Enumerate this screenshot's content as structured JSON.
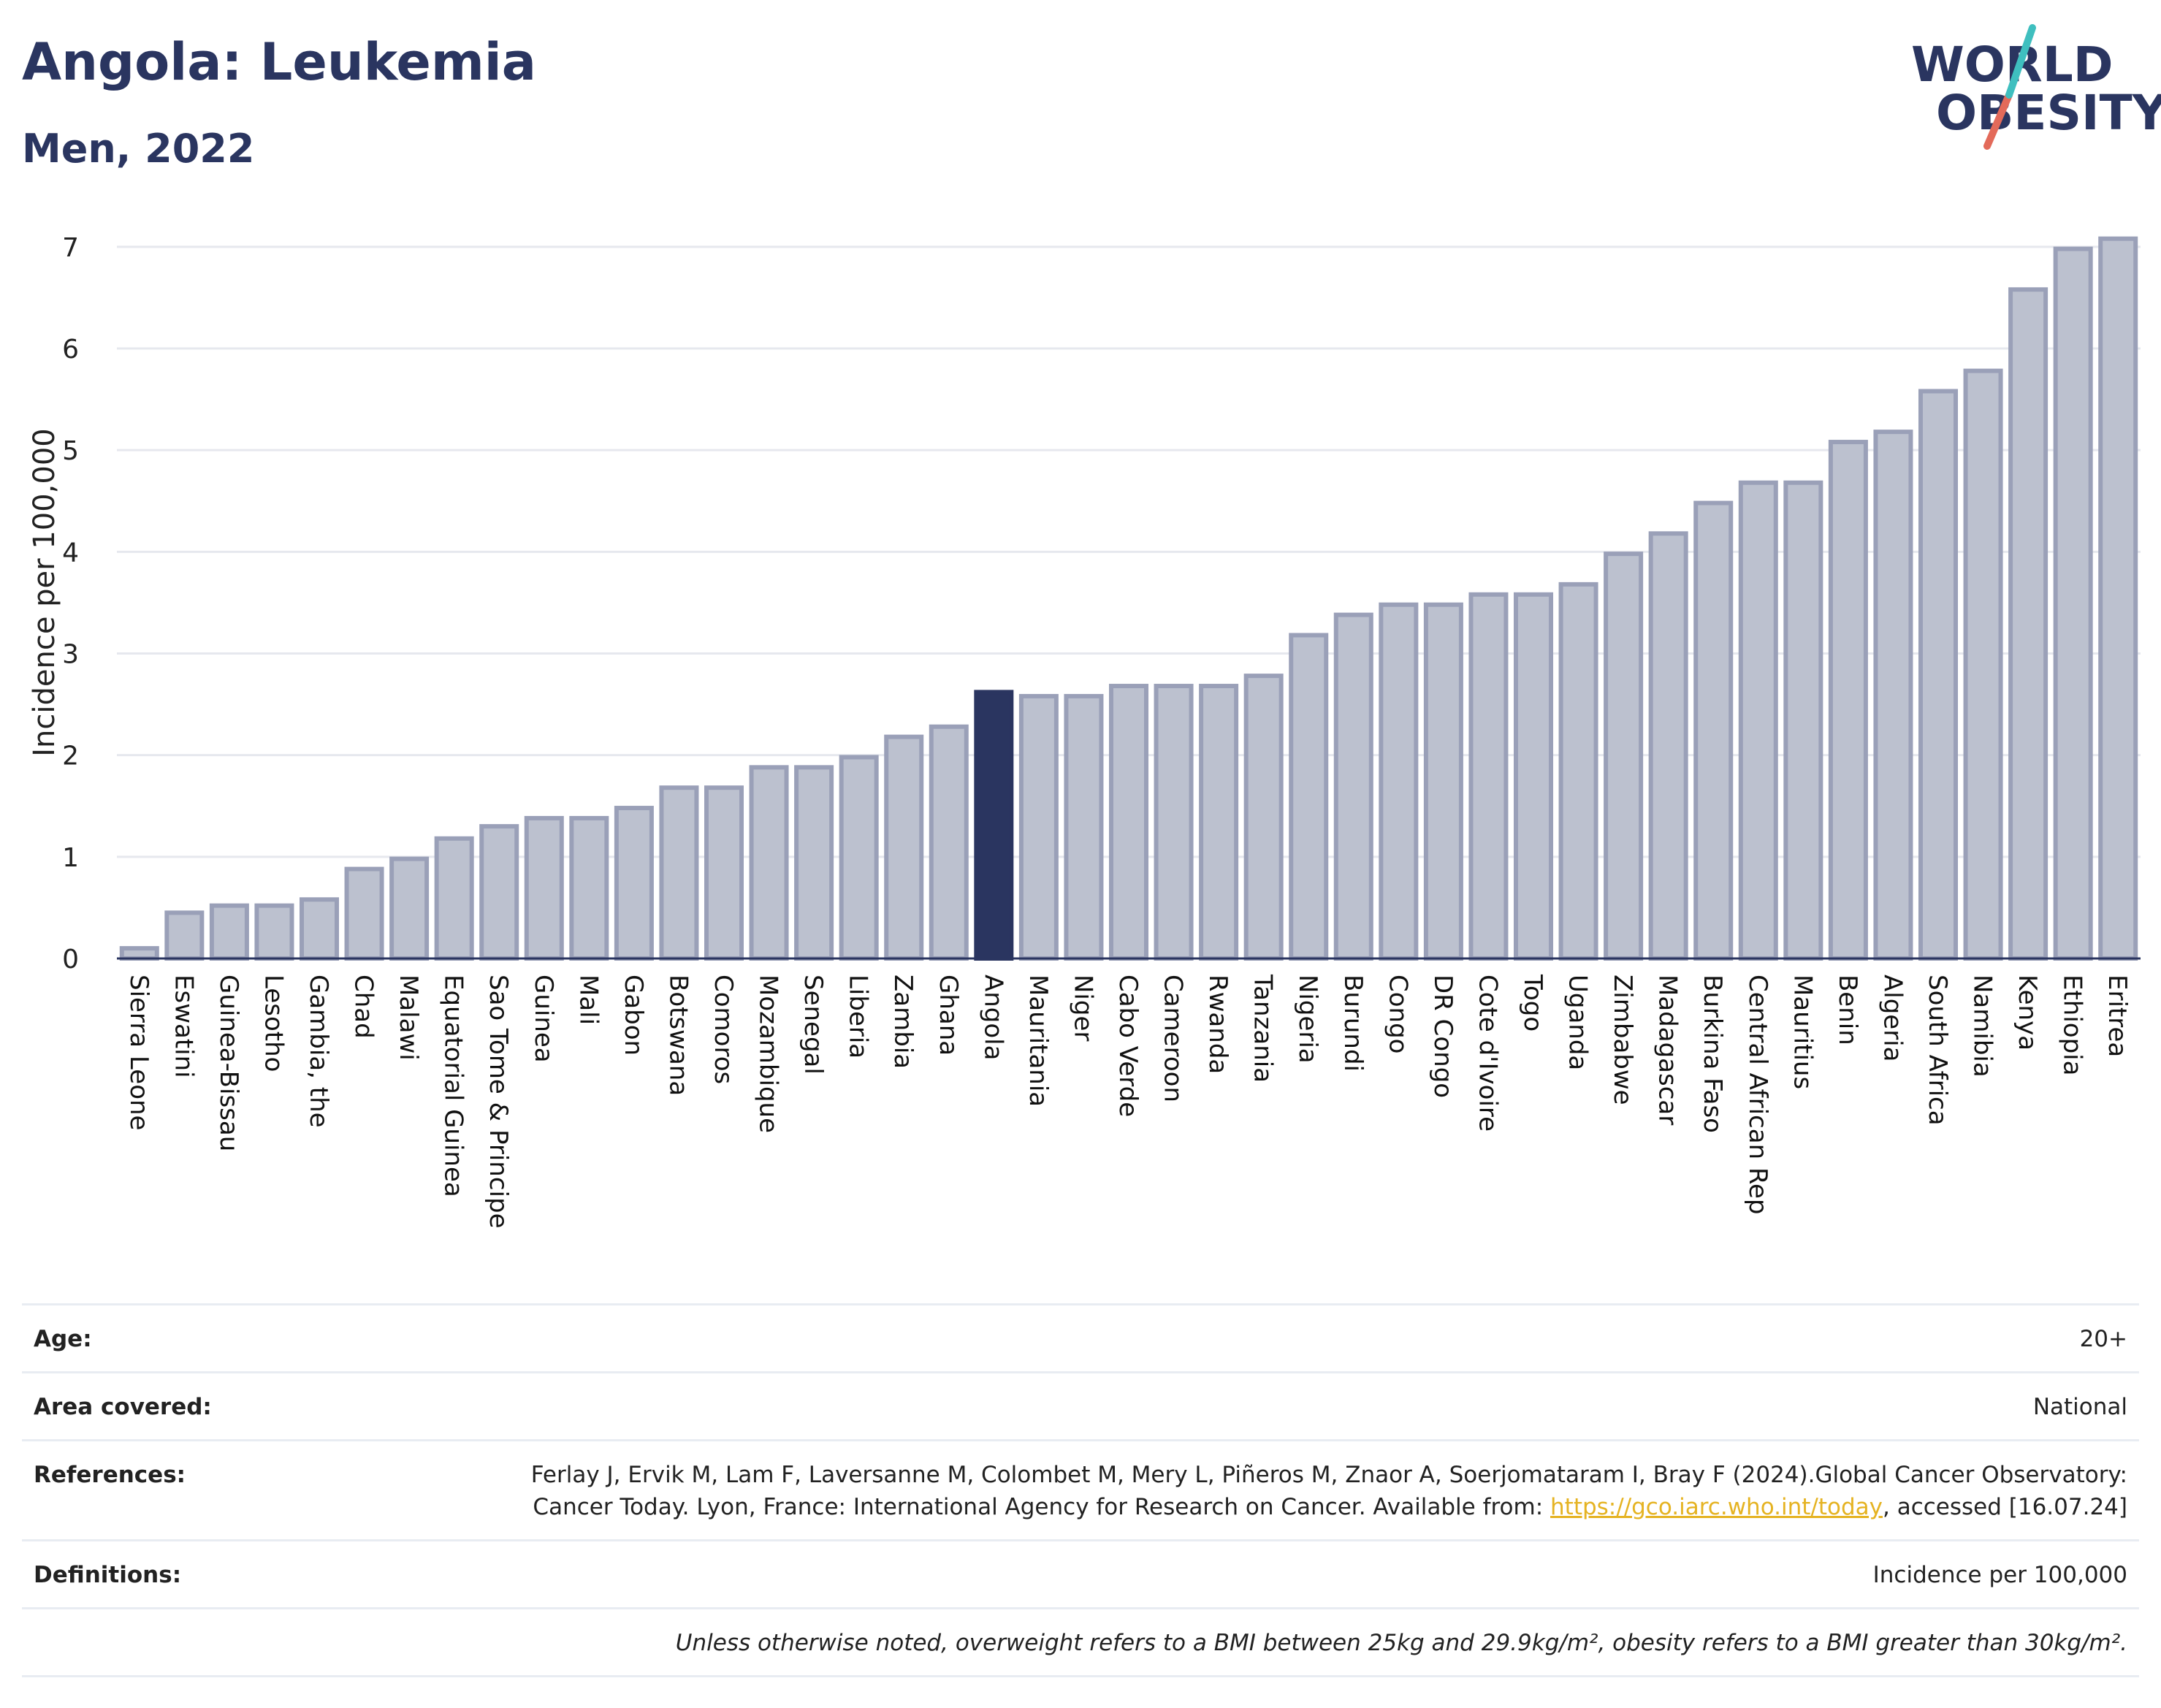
{
  "header": {
    "title": "Angola: Leukemia",
    "subtitle": "Men, 2022"
  },
  "logo": {
    "line1": "WORLD",
    "line2": "OBESITY"
  },
  "colors": {
    "bar": "#bcc1cf",
    "bar_stroke": "#9aa0b8",
    "highlight": "#2a3560",
    "slash_teal": "#3fbfbf",
    "slash_red": "#e36a5a"
  },
  "chart_data": {
    "type": "bar",
    "ylabel": "Incidence per 100,000",
    "ylim": [
      0,
      7.2
    ],
    "yticks": [
      0,
      1,
      2,
      3,
      4,
      5,
      6,
      7
    ],
    "grid": true,
    "highlight": "Angola",
    "categories": [
      "Sierra Leone",
      "Eswatini",
      "Guinea-Bissau",
      "Lesotho",
      "Gambia, the",
      "Chad",
      "Malawi",
      "Equatorial Guinea",
      "Sao Tome & Principe",
      "Guinea",
      "Mali",
      "Gabon",
      "Botswana",
      "Comoros",
      "Mozambique",
      "Senegal",
      "Liberia",
      "Zambia",
      "Ghana",
      "Angola",
      "Mauritania",
      "Niger",
      "Cabo Verde",
      "Cameroon",
      "Rwanda",
      "Tanzania",
      "Nigeria",
      "Burundi",
      "Congo",
      "DR Congo",
      "Cote d'Ivoire",
      "Togo",
      "Uganda",
      "Zimbabwe",
      "Madagascar",
      "Burkina Faso",
      "Central African Rep",
      "Mauritius",
      "Benin",
      "Algeria",
      "South Africa",
      "Namibia",
      "Kenya",
      "Ethiopia",
      "Eritrea"
    ],
    "values": [
      0.1,
      0.45,
      0.52,
      0.52,
      0.58,
      0.88,
      0.98,
      1.18,
      1.3,
      1.38,
      1.38,
      1.48,
      1.68,
      1.68,
      1.88,
      1.88,
      1.98,
      2.18,
      2.28,
      2.62,
      2.58,
      2.58,
      2.68,
      2.68,
      2.68,
      2.78,
      3.18,
      3.38,
      3.48,
      3.48,
      3.58,
      3.58,
      3.68,
      3.98,
      4.18,
      4.48,
      4.68,
      4.68,
      5.08,
      5.18,
      5.58,
      5.78,
      6.58,
      6.98,
      7.08
    ]
  },
  "meta": {
    "age": {
      "label": "Age:",
      "value": "20+"
    },
    "area": {
      "label": "Area covered:",
      "value": "National"
    },
    "references": {
      "label": "References:",
      "text1": "Ferlay J, Ervik M, Lam F, Laversanne M, Colombet M, Mery L, Piñeros M, Znaor A, Soerjomataram I, Bray F (2024).Global Cancer Observatory: Cancer Today. Lyon, France: International Agency for Research on Cancer. Available from: ",
      "link": "https://gco.iarc.who.int/today",
      "text2": ", accessed [16.07.24]"
    },
    "definitions": {
      "label": "Definitions:",
      "value": "Incidence per 100,000"
    },
    "note": "Unless otherwise noted, overweight refers to a BMI between 25kg and 29.9kg/m², obesity refers to a BMI greater than 30kg/m²."
  }
}
